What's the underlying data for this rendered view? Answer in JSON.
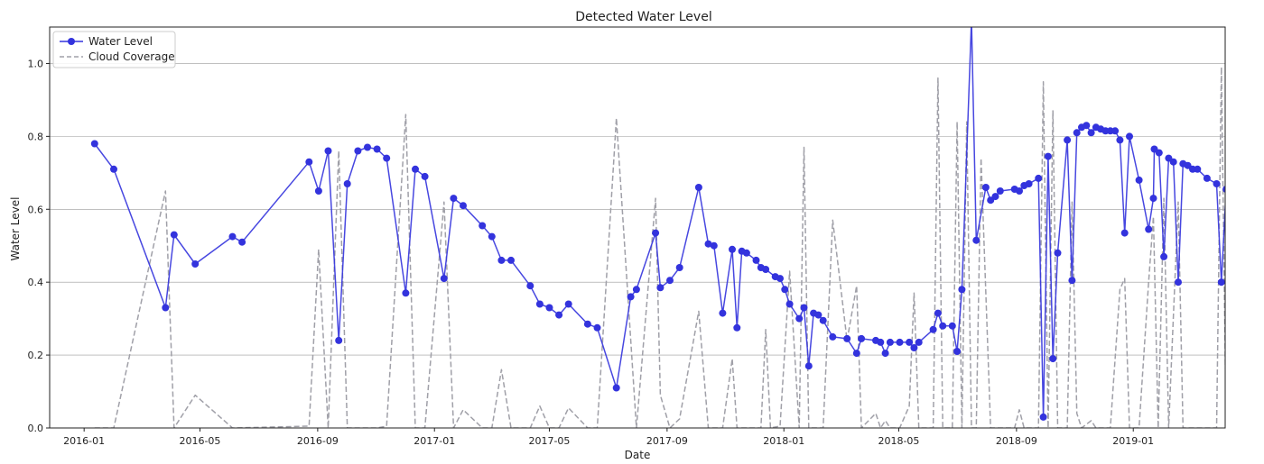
{
  "chart_data": {
    "type": "line",
    "title": "Detected Water Level",
    "xlabel": "Date",
    "ylabel": "Water Level",
    "xlim": [
      "2015-11-26",
      "2019-04-07"
    ],
    "ylim": [
      0,
      1.1
    ],
    "x_ticks": [
      "2016-01",
      "2016-05",
      "2016-09",
      "2017-01",
      "2017-05",
      "2017-09",
      "2018-01",
      "2018-05",
      "2018-09",
      "2019-01"
    ],
    "y_ticks": [
      "0.0",
      "0.2",
      "0.4",
      "0.6",
      "0.8",
      "1.0"
    ],
    "grid": "horizontal",
    "legend_position": "top-left",
    "series": [
      {
        "name": "Water Level",
        "color": "#3333dd",
        "style": "solid-marker",
        "points": [
          [
            "2016-01-12",
            0.78
          ],
          [
            "2016-02-01",
            0.71
          ],
          [
            "2016-03-26",
            0.33
          ],
          [
            "2016-04-04",
            0.53
          ],
          [
            "2016-04-26",
            0.45
          ],
          [
            "2016-06-04",
            0.525
          ],
          [
            "2016-06-14",
            0.51
          ],
          [
            "2016-08-23",
            0.73
          ],
          [
            "2016-09-02",
            0.65
          ],
          [
            "2016-09-12",
            0.76
          ],
          [
            "2016-09-23",
            0.24
          ],
          [
            "2016-10-02",
            0.67
          ],
          [
            "2016-10-13",
            0.76
          ],
          [
            "2016-10-23",
            0.77
          ],
          [
            "2016-11-02",
            0.765
          ],
          [
            "2016-11-12",
            0.74
          ],
          [
            "2016-12-02",
            0.37
          ],
          [
            "2016-12-12",
            0.71
          ],
          [
            "2016-12-22",
            0.69
          ],
          [
            "2017-01-11",
            0.41
          ],
          [
            "2017-01-21",
            0.63
          ],
          [
            "2017-01-31",
            0.61
          ],
          [
            "2017-02-20",
            0.555
          ],
          [
            "2017-03-02",
            0.525
          ],
          [
            "2017-03-12",
            0.46
          ],
          [
            "2017-03-22",
            0.46
          ],
          [
            "2017-04-11",
            0.39
          ],
          [
            "2017-04-21",
            0.34
          ],
          [
            "2017-05-01",
            0.33
          ],
          [
            "2017-05-11",
            0.31
          ],
          [
            "2017-05-21",
            0.34
          ],
          [
            "2017-06-10",
            0.285
          ],
          [
            "2017-06-20",
            0.275
          ],
          [
            "2017-07-10",
            0.11
          ],
          [
            "2017-07-25",
            0.36
          ],
          [
            "2017-07-31",
            0.38
          ],
          [
            "2017-08-20",
            0.535
          ],
          [
            "2017-08-25",
            0.385
          ],
          [
            "2017-09-04",
            0.405
          ],
          [
            "2017-09-14",
            0.44
          ],
          [
            "2017-10-04",
            0.66
          ],
          [
            "2017-10-14",
            0.505
          ],
          [
            "2017-10-20",
            0.5
          ],
          [
            "2017-10-29",
            0.315
          ],
          [
            "2017-11-08",
            0.49
          ],
          [
            "2017-11-13",
            0.275
          ],
          [
            "2017-11-18",
            0.485
          ],
          [
            "2017-11-23",
            0.48
          ],
          [
            "2017-12-03",
            0.46
          ],
          [
            "2017-12-08",
            0.44
          ],
          [
            "2017-12-13",
            0.435
          ],
          [
            "2017-12-23",
            0.415
          ],
          [
            "2017-12-28",
            0.41
          ],
          [
            "2018-01-02",
            0.38
          ],
          [
            "2018-01-07",
            0.34
          ],
          [
            "2018-01-17",
            0.3
          ],
          [
            "2018-01-22",
            0.33
          ],
          [
            "2018-01-27",
            0.17
          ],
          [
            "2018-02-01",
            0.315
          ],
          [
            "2018-02-06",
            0.31
          ],
          [
            "2018-02-11",
            0.295
          ],
          [
            "2018-02-21",
            0.25
          ],
          [
            "2018-03-08",
            0.245
          ],
          [
            "2018-03-18",
            0.205
          ],
          [
            "2018-03-23",
            0.245
          ],
          [
            "2018-04-07",
            0.24
          ],
          [
            "2018-04-12",
            0.235
          ],
          [
            "2018-04-17",
            0.205
          ],
          [
            "2018-04-22",
            0.235
          ],
          [
            "2018-05-02",
            0.235
          ],
          [
            "2018-05-12",
            0.235
          ],
          [
            "2018-05-17",
            0.22
          ],
          [
            "2018-05-22",
            0.235
          ],
          [
            "2018-06-06",
            0.27
          ],
          [
            "2018-06-11",
            0.315
          ],
          [
            "2018-06-16",
            0.28
          ],
          [
            "2018-06-26",
            0.28
          ],
          [
            "2018-07-01",
            0.21
          ],
          [
            "2018-07-06",
            0.38
          ],
          [
            "2018-07-16",
            1.12
          ],
          [
            "2018-07-21",
            0.515
          ],
          [
            "2018-07-31",
            0.66
          ],
          [
            "2018-08-05",
            0.625
          ],
          [
            "2018-08-10",
            0.635
          ],
          [
            "2018-08-15",
            0.65
          ],
          [
            "2018-08-30",
            0.655
          ],
          [
            "2018-09-04",
            0.65
          ],
          [
            "2018-09-09",
            0.665
          ],
          [
            "2018-09-14",
            0.67
          ],
          [
            "2018-09-24",
            0.685
          ],
          [
            "2018-09-29",
            0.03
          ],
          [
            "2018-10-04",
            0.745
          ],
          [
            "2018-10-09",
            0.19
          ],
          [
            "2018-10-14",
            0.48
          ],
          [
            "2018-10-24",
            0.79
          ],
          [
            "2018-10-29",
            0.405
          ],
          [
            "2018-11-03",
            0.81
          ],
          [
            "2018-11-08",
            0.825
          ],
          [
            "2018-11-13",
            0.83
          ],
          [
            "2018-11-18",
            0.81
          ],
          [
            "2018-11-23",
            0.825
          ],
          [
            "2018-11-28",
            0.82
          ],
          [
            "2018-12-03",
            0.815
          ],
          [
            "2018-12-08",
            0.815
          ],
          [
            "2018-12-13",
            0.815
          ],
          [
            "2018-12-18",
            0.79
          ],
          [
            "2018-12-23",
            0.535
          ],
          [
            "2018-12-28",
            0.8
          ],
          [
            "2019-01-07",
            0.68
          ],
          [
            "2019-01-17",
            0.545
          ],
          [
            "2019-01-22",
            0.63
          ],
          [
            "2019-01-23",
            0.765
          ],
          [
            "2019-01-28",
            0.755
          ],
          [
            "2019-02-02",
            0.47
          ],
          [
            "2019-02-07",
            0.74
          ],
          [
            "2019-02-12",
            0.73
          ],
          [
            "2019-02-17",
            0.4
          ],
          [
            "2019-02-22",
            0.725
          ],
          [
            "2019-02-27",
            0.72
          ],
          [
            "2019-03-04",
            0.71
          ],
          [
            "2019-03-09",
            0.71
          ],
          [
            "2019-03-19",
            0.685
          ],
          [
            "2019-03-29",
            0.67
          ],
          [
            "2019-04-03",
            0.4
          ],
          [
            "2019-04-08",
            0.655
          ]
        ]
      },
      {
        "name": "Cloud Coverage",
        "color": "#a0a0a8",
        "style": "dashed",
        "points": [
          [
            "2016-01-12",
            0.0
          ],
          [
            "2016-02-01",
            0.0
          ],
          [
            "2016-03-26",
            0.65
          ],
          [
            "2016-04-04",
            0.0
          ],
          [
            "2016-04-26",
            0.09
          ],
          [
            "2016-06-04",
            0.0
          ],
          [
            "2016-08-23",
            0.005
          ],
          [
            "2016-09-02",
            0.49
          ],
          [
            "2016-09-12",
            0.0
          ],
          [
            "2016-09-23",
            0.76
          ],
          [
            "2016-10-02",
            0.0
          ],
          [
            "2016-10-23",
            0.0
          ],
          [
            "2016-11-02",
            0.0
          ],
          [
            "2016-11-12",
            0.005
          ],
          [
            "2016-12-02",
            0.86
          ],
          [
            "2016-12-12",
            0.0
          ],
          [
            "2016-12-22",
            0.0
          ],
          [
            "2017-01-11",
            0.62
          ],
          [
            "2017-01-21",
            0.0
          ],
          [
            "2017-01-31",
            0.05
          ],
          [
            "2017-02-20",
            0.0
          ],
          [
            "2017-03-02",
            0.0
          ],
          [
            "2017-03-12",
            0.16
          ],
          [
            "2017-03-22",
            0.0
          ],
          [
            "2017-04-11",
            0.0
          ],
          [
            "2017-04-21",
            0.06
          ],
          [
            "2017-05-01",
            0.0
          ],
          [
            "2017-05-11",
            0.0
          ],
          [
            "2017-05-21",
            0.055
          ],
          [
            "2017-06-10",
            0.0
          ],
          [
            "2017-06-20",
            0.0
          ],
          [
            "2017-07-10",
            0.85
          ],
          [
            "2017-07-31",
            0.0
          ],
          [
            "2017-08-20",
            0.63
          ],
          [
            "2017-08-25",
            0.09
          ],
          [
            "2017-09-04",
            0.0
          ],
          [
            "2017-09-14",
            0.025
          ],
          [
            "2017-10-04",
            0.32
          ],
          [
            "2017-10-14",
            0.0
          ],
          [
            "2017-10-29",
            0.0
          ],
          [
            "2017-11-08",
            0.19
          ],
          [
            "2017-11-13",
            0.0
          ],
          [
            "2017-11-23",
            0.0
          ],
          [
            "2017-12-03",
            0.0
          ],
          [
            "2017-12-08",
            0.0
          ],
          [
            "2017-12-13",
            0.27
          ],
          [
            "2017-12-18",
            0.0
          ],
          [
            "2017-12-28",
            0.005
          ],
          [
            "2018-01-07",
            0.43
          ],
          [
            "2018-01-17",
            0.0
          ],
          [
            "2018-01-22",
            0.77
          ],
          [
            "2018-01-27",
            0.0
          ],
          [
            "2018-02-06",
            0.0
          ],
          [
            "2018-02-11",
            0.0
          ],
          [
            "2018-02-21",
            0.57
          ],
          [
            "2018-03-08",
            0.24
          ],
          [
            "2018-03-18",
            0.39
          ],
          [
            "2018-03-23",
            0.0
          ],
          [
            "2018-04-07",
            0.04
          ],
          [
            "2018-04-12",
            0.0
          ],
          [
            "2018-04-17",
            0.02
          ],
          [
            "2018-04-22",
            0.0
          ],
          [
            "2018-05-02",
            0.0
          ],
          [
            "2018-05-12",
            0.06
          ],
          [
            "2018-05-17",
            0.37
          ],
          [
            "2018-05-22",
            0.0
          ],
          [
            "2018-06-06",
            0.0
          ],
          [
            "2018-06-11",
            0.96
          ],
          [
            "2018-06-16",
            0.0
          ],
          [
            "2018-06-26",
            0.0
          ],
          [
            "2018-07-01",
            0.84
          ],
          [
            "2018-07-06",
            0.0
          ],
          [
            "2018-07-11",
            0.84
          ],
          [
            "2018-07-16",
            0.0
          ],
          [
            "2018-07-21",
            0.0
          ],
          [
            "2018-07-26",
            0.74
          ],
          [
            "2018-08-05",
            0.0
          ],
          [
            "2018-08-15",
            0.0
          ],
          [
            "2018-08-30",
            0.0
          ],
          [
            "2018-09-04",
            0.05
          ],
          [
            "2018-09-09",
            0.0
          ],
          [
            "2018-09-24",
            0.0
          ],
          [
            "2018-09-29",
            0.95
          ],
          [
            "2018-10-04",
            0.0
          ],
          [
            "2018-10-09",
            0.87
          ],
          [
            "2018-10-14",
            0.0
          ],
          [
            "2018-10-24",
            0.0
          ],
          [
            "2018-10-29",
            0.62
          ],
          [
            "2018-11-03",
            0.04
          ],
          [
            "2018-11-08",
            0.0
          ],
          [
            "2018-11-18",
            0.02
          ],
          [
            "2018-11-23",
            0.0
          ],
          [
            "2018-12-03",
            0.0
          ],
          [
            "2018-12-08",
            0.0
          ],
          [
            "2018-12-18",
            0.38
          ],
          [
            "2018-12-23",
            0.41
          ],
          [
            "2018-12-28",
            0.0
          ],
          [
            "2019-01-07",
            0.0
          ],
          [
            "2019-01-17",
            0.4
          ],
          [
            "2019-01-22",
            0.58
          ],
          [
            "2019-01-27",
            0.0
          ],
          [
            "2019-02-02",
            0.63
          ],
          [
            "2019-02-07",
            0.0
          ],
          [
            "2019-02-17",
            0.62
          ],
          [
            "2019-02-22",
            0.0
          ],
          [
            "2019-02-27",
            0.0
          ],
          [
            "2019-03-19",
            0.0
          ],
          [
            "2019-03-29",
            0.0
          ],
          [
            "2019-04-03",
            0.99
          ],
          [
            "2019-04-08",
            0.0
          ]
        ]
      }
    ]
  }
}
